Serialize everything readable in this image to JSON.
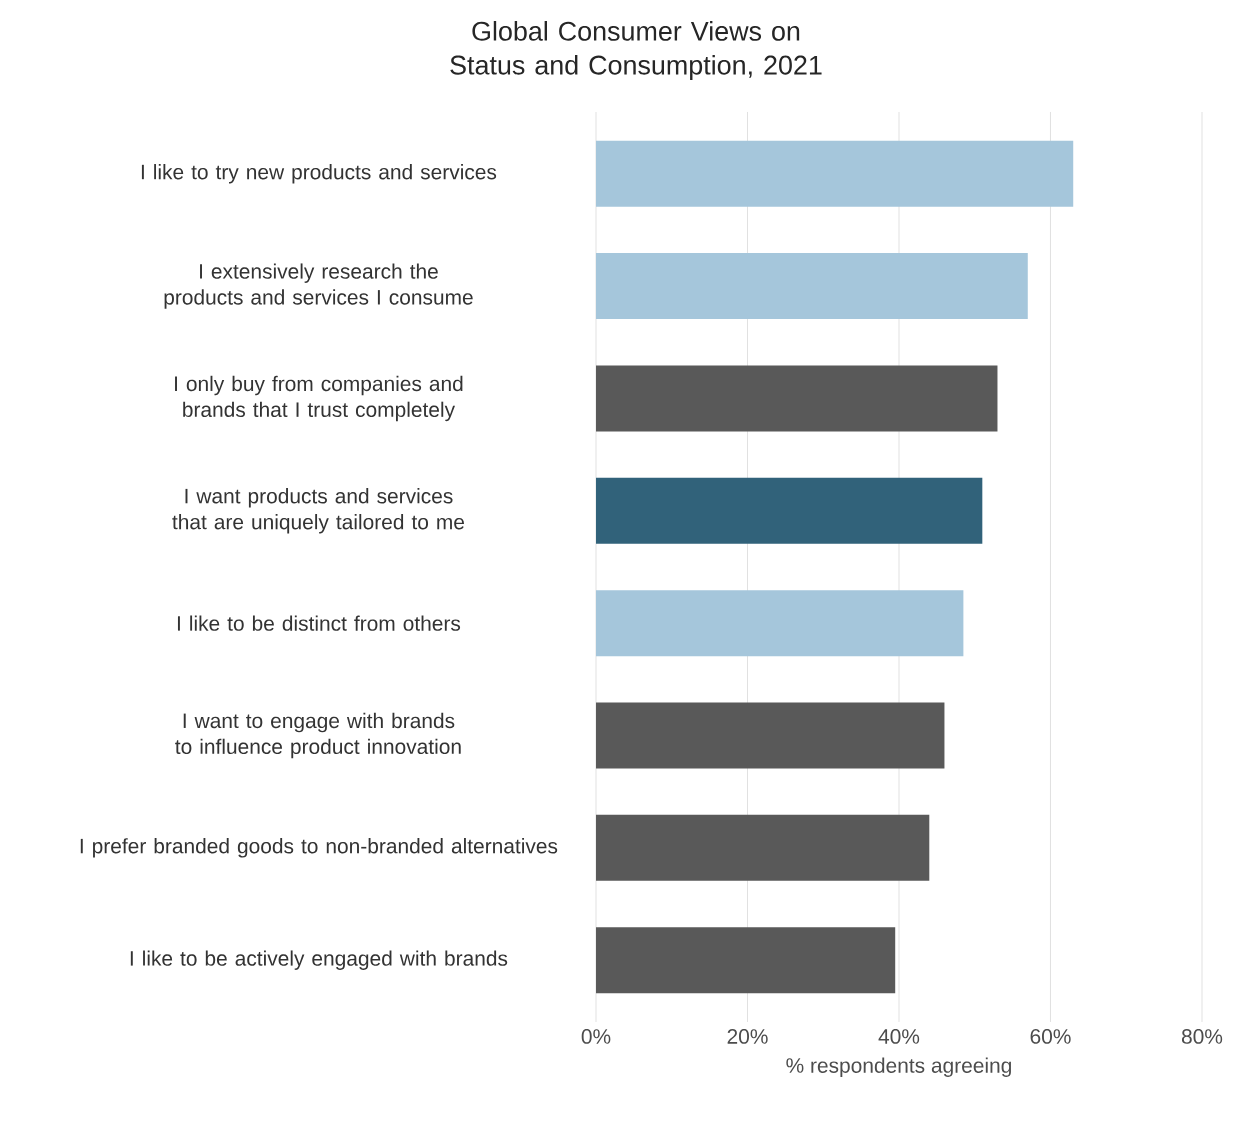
{
  "chart_data": {
    "type": "bar",
    "orientation": "horizontal",
    "title": "Global Consumer Views on Status and Consumption, 2021",
    "xlabel": "% respondents agreeing",
    "categories": [
      "I like to try new products and services",
      "I extensively research the products and services I consume",
      "I only buy from companies and brands that I trust completely",
      "I want products and services that are uniquely tailored to me",
      "I like to be distinct from others",
      "I want to engage with brands to influence product innovation",
      "I prefer branded goods to non-branded alternatives",
      "I like to be actively engaged with brands"
    ],
    "values": [
      63,
      57,
      53,
      51,
      48.5,
      46,
      44,
      39.5
    ],
    "colors": [
      "#a5c6db",
      "#a5c6db",
      "#595959",
      "#31627a",
      "#a5c6db",
      "#595959",
      "#595959",
      "#595959"
    ],
    "xlim": [
      0,
      80
    ],
    "xticks": [
      {
        "value": 0,
        "label": "0%"
      },
      {
        "value": 20,
        "label": "20%"
      },
      {
        "value": 40,
        "label": "40%"
      },
      {
        "value": 60,
        "label": "60%"
      },
      {
        "value": 80,
        "label": "80%"
      }
    ],
    "grid": "x"
  }
}
